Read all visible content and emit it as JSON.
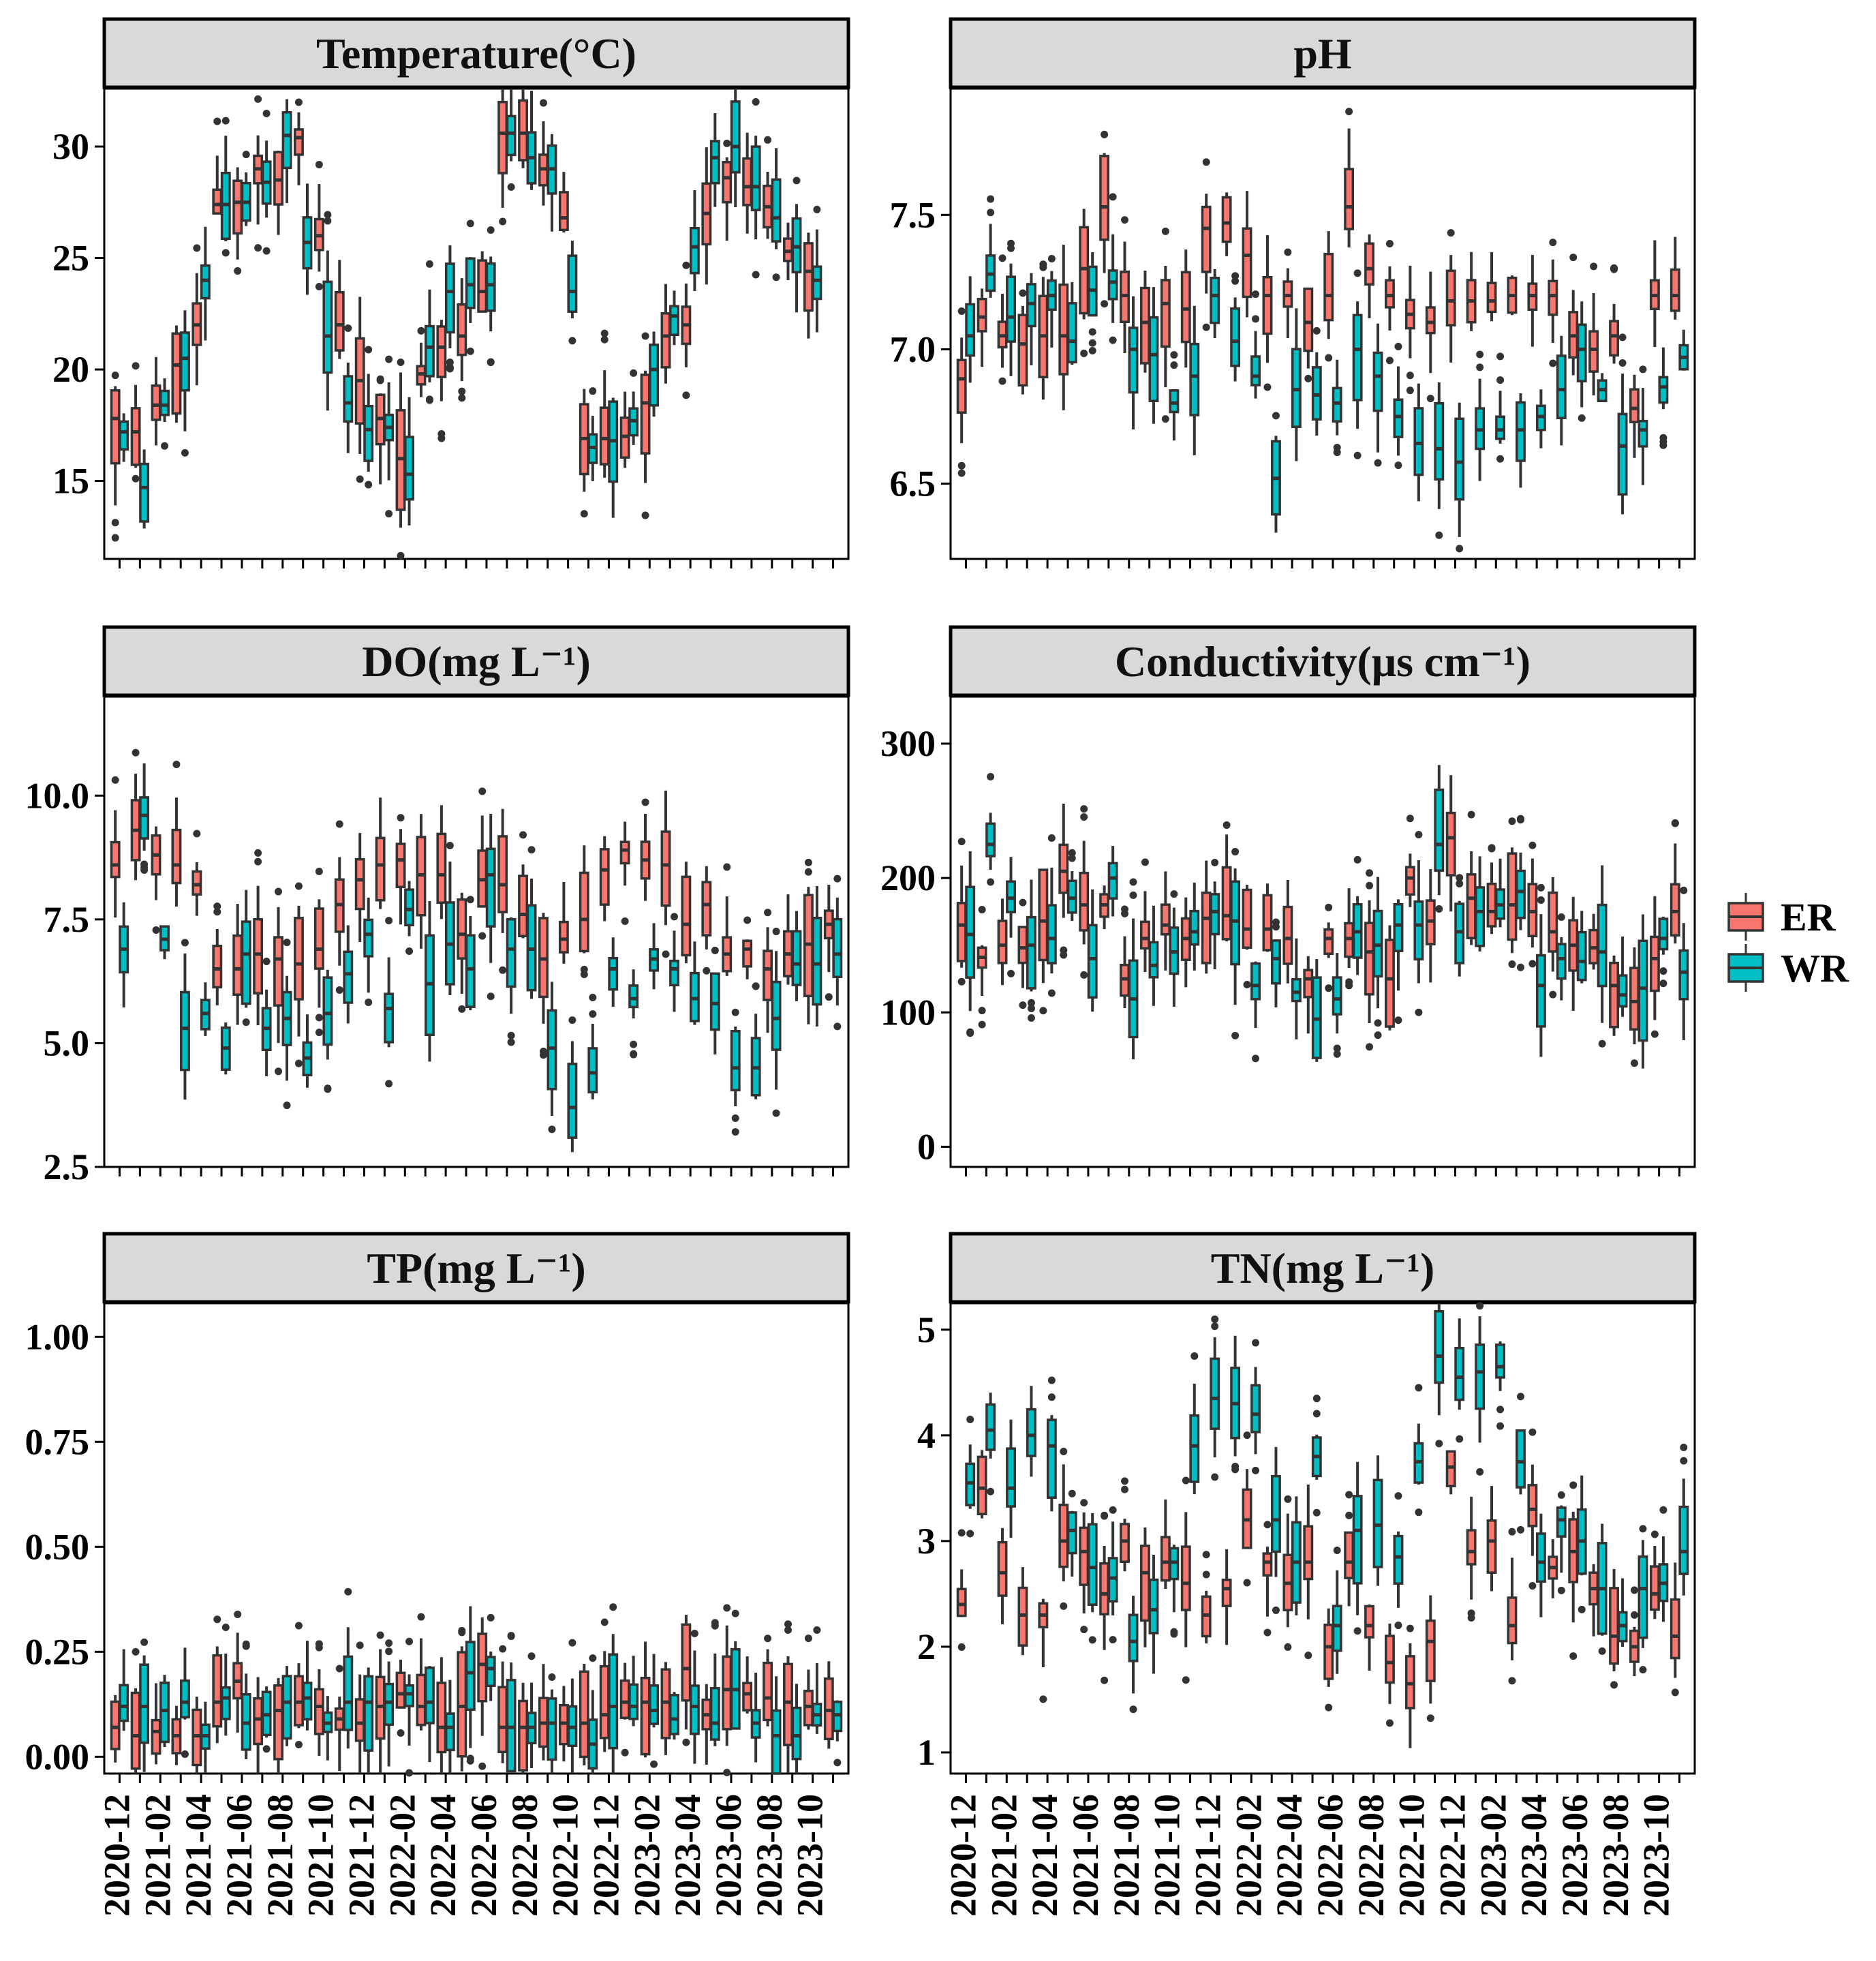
{
  "chart_data": {
    "type": "boxplot",
    "layout": "facet_grid_3x2",
    "legend": {
      "position": "right",
      "entries": [
        {
          "name": "ER",
          "color": "#F8766D"
        },
        {
          "name": "WR",
          "color": "#00BFC4"
        }
      ]
    },
    "month_labels": [
      "2020-12",
      "2021-02",
      "2021-04",
      "2021-06",
      "2021-08",
      "2021-10",
      "2021-12",
      "2022-02",
      "2022-04",
      "2022-06",
      "2022-08",
      "2022-10",
      "2022-12",
      "2023-02",
      "2023-04",
      "2023-06",
      "2023-08",
      "2023-10"
    ],
    "months": [
      "2020-12",
      "2021-01",
      "2021-02",
      "2021-03",
      "2021-04",
      "2021-05",
      "2021-06",
      "2021-07",
      "2021-08",
      "2021-09",
      "2021-10",
      "2021-11",
      "2021-12",
      "2022-01",
      "2022-02",
      "2022-03",
      "2022-04",
      "2022-05",
      "2022-06",
      "2022-07",
      "2022-08",
      "2022-09",
      "2022-10",
      "2022-11",
      "2022-12",
      "2023-01",
      "2023-02",
      "2023-03",
      "2023-04",
      "2023-05",
      "2023-06",
      "2023-07",
      "2023-08",
      "2023-09",
      "2023-10",
      "2023-11"
    ],
    "panels": [
      {
        "title": "Temperature(°C)",
        "ylim": [
          11.5,
          32.6
        ],
        "yticks": [
          15,
          20,
          25,
          30
        ],
        "ER": [
          17.8,
          17.2,
          18.4,
          20.2,
          22.0,
          27.4,
          27.5,
          29.0,
          28.5,
          30.4,
          26.0,
          22.0,
          19.5,
          17.8,
          16.0,
          19.8,
          21.0,
          21.5,
          23.5,
          30.6,
          30.6,
          29.0,
          26.8,
          16.9,
          16.9,
          17.0,
          18.5,
          21.5,
          22.0,
          27.0,
          28.6,
          28.2,
          27.3,
          25.3,
          24.4,
          null
        ],
        "WR": [
          17.2,
          14.7,
          18.4,
          20.5,
          24.0,
          27.4,
          27.5,
          28.4,
          30.5,
          25.7,
          21.5,
          18.5,
          17.3,
          17.4,
          15.3,
          21.0,
          23.5,
          23.8,
          23.8,
          30.6,
          29.5,
          29.0,
          23.5,
          16.5,
          16.8,
          17.7,
          20.0,
          22.4,
          25.5,
          29.5,
          30.0,
          28.2,
          26.8,
          25.5,
          24.0,
          null
        ]
      },
      {
        "title": "pH",
        "ylim": [
          6.22,
          7.97
        ],
        "yticks": [
          6.5,
          7.0,
          7.5
        ],
        "ER": [
          6.89,
          7.12,
          7.05,
          7.02,
          7.05,
          7.05,
          7.3,
          7.53,
          7.2,
          7.1,
          7.17,
          7.15,
          7.45,
          7.47,
          7.35,
          7.2,
          7.2,
          7.1,
          7.2,
          7.53,
          7.3,
          7.2,
          7.13,
          7.1,
          7.18,
          7.18,
          7.18,
          7.2,
          7.2,
          7.2,
          7.05,
          7.0,
          7.05,
          6.78,
          7.2,
          7.2
        ],
        "WR": [
          7.05,
          7.28,
          7.12,
          7.17,
          7.2,
          7.03,
          7.22,
          7.25,
          7.0,
          6.98,
          6.8,
          6.9,
          7.2,
          7.03,
          6.9,
          6.52,
          6.85,
          6.83,
          6.8,
          7.0,
          6.9,
          6.75,
          6.65,
          6.63,
          6.58,
          6.7,
          6.7,
          6.7,
          6.75,
          6.85,
          7.0,
          6.85,
          6.64,
          6.7,
          6.86,
          6.97
        ]
      },
      {
        "title": "DO(mg L⁻¹)",
        "ylim": [
          2.5,
          12.0
        ],
        "yticks": [
          2.5,
          5.0,
          7.5,
          10.0
        ],
        "ER": [
          8.6,
          9.3,
          8.8,
          8.6,
          8.2,
          6.5,
          6.5,
          6.8,
          6.7,
          6.6,
          6.9,
          7.8,
          8.3,
          8.6,
          8.7,
          8.4,
          8.4,
          7.2,
          8.3,
          8.2,
          7.6,
          6.7,
          7.1,
          7.5,
          8.5,
          8.9,
          8.7,
          8.6,
          7.4,
          7.8,
          6.8,
          6.9,
          6.5,
          6.8,
          7.0,
          7.4
        ],
        "WR": [
          6.9,
          9.6,
          7.1,
          5.3,
          5.6,
          4.9,
          6.8,
          5.3,
          5.5,
          4.7,
          5.6,
          6.4,
          7.2,
          5.7,
          7.7,
          6.2,
          7.0,
          6.5,
          8.4,
          6.9,
          6.9,
          4.9,
          3.7,
          4.4,
          6.5,
          5.9,
          6.7,
          6.5,
          5.9,
          5.8,
          4.5,
          4.5,
          5.5,
          6.6,
          6.6,
          6.8
        ]
      },
      {
        "title": "Conductivity(μs cm⁻¹)",
        "ylim": [
          -15,
          335
        ],
        "yticks": [
          0,
          100,
          200,
          300
        ],
        "ER": [
          165,
          141,
          150,
          148,
          168,
          205,
          180,
          180,
          125,
          155,
          165,
          155,
          170,
          172,
          162,
          162,
          155,
          125,
          155,
          155,
          145,
          125,
          200,
          168,
          230,
          185,
          175,
          180,
          175,
          160,
          150,
          148,
          120,
          108,
          140,
          175
        ],
        "WR": [
          158,
          225,
          185,
          150,
          155,
          185,
          140,
          200,
          110,
          135,
          145,
          160,
          175,
          168,
          120,
          140,
          115,
          95,
          110,
          160,
          150,
          165,
          165,
          225,
          160,
          175,
          180,
          190,
          120,
          140,
          138,
          145,
          113,
          118,
          155,
          130
        ]
      },
      {
        "title": "TP(mg L⁻¹)",
        "ylim": [
          -0.04,
          1.08
        ],
        "yticks": [
          0.0,
          0.25,
          0.5,
          0.75,
          1.0
        ],
        "ER": [
          0.07,
          0.05,
          0.06,
          0.05,
          0.05,
          0.13,
          0.18,
          0.09,
          0.11,
          0.13,
          0.12,
          0.09,
          0.08,
          0.12,
          0.15,
          0.12,
          0.07,
          0.12,
          0.22,
          0.07,
          0.07,
          0.08,
          0.08,
          0.08,
          0.1,
          0.13,
          0.13,
          0.13,
          0.21,
          0.1,
          0.16,
          0.15,
          0.14,
          0.13,
          0.12,
          0.11
        ],
        "WR": [
          0.12,
          0.12,
          0.11,
          0.13,
          0.05,
          0.14,
          0.08,
          0.1,
          0.13,
          0.14,
          0.08,
          0.13,
          0.13,
          0.13,
          0.15,
          0.13,
          0.07,
          0.2,
          0.21,
          0.07,
          0.07,
          0.08,
          0.07,
          0.03,
          0.12,
          0.12,
          0.11,
          0.09,
          0.12,
          0.08,
          0.16,
          0.08,
          0.05,
          0.05,
          0.1,
          0.1
        ]
      },
      {
        "title": "TN(mg L⁻¹)",
        "ylim": [
          0.8,
          5.25
        ],
        "yticks": [
          1,
          2,
          3,
          4,
          5
        ],
        "ER": [
          2.4,
          3.5,
          2.7,
          2.3,
          2.3,
          3.0,
          2.9,
          2.5,
          3.0,
          2.7,
          2.8,
          2.6,
          2.3,
          2.55,
          3.2,
          2.8,
          2.6,
          2.8,
          2.0,
          2.8,
          2.2,
          1.85,
          1.65,
          2.05,
          3.7,
          2.9,
          3.0,
          2.2,
          3.3,
          2.75,
          2.9,
          2.55,
          2.1,
          2.0,
          2.5,
          2.1
        ],
        "WR": [
          3.55,
          4.05,
          3.5,
          4.0,
          3.9,
          3.1,
          2.75,
          2.65,
          2.05,
          2.35,
          2.8,
          3.9,
          4.35,
          4.3,
          4.2,
          3.2,
          2.8,
          3.8,
          2.2,
          3.1,
          3.15,
          2.85,
          3.75,
          4.75,
          4.55,
          4.6,
          4.65,
          3.75,
          2.8,
          3.2,
          3.0,
          2.55,
          2.2,
          2.55,
          2.6,
          2.9
        ]
      }
    ]
  }
}
